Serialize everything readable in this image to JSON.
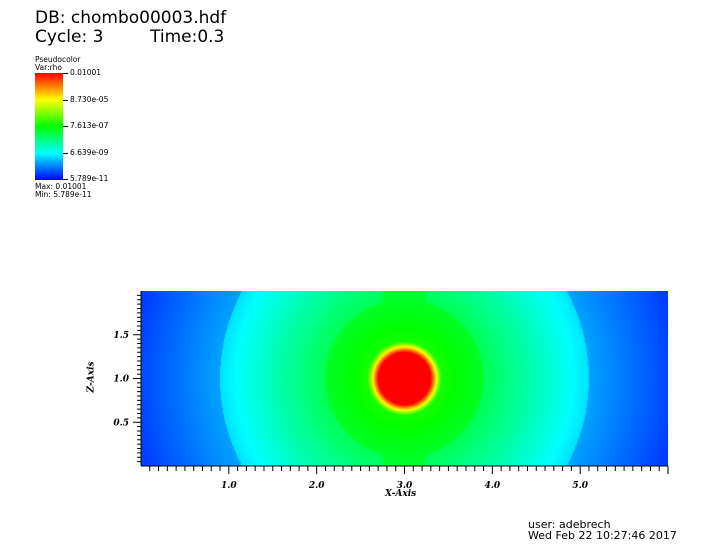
{
  "header": {
    "db": "DB: chombo00003.hdf",
    "cycle": "Cycle: 3",
    "time": "Time:0.3"
  },
  "legend": {
    "plot_type": "Pseudocolor",
    "var": "Var:rho",
    "ticks": [
      "0.01001",
      "8.730e-05",
      "7.613e-07",
      "6.639e-09",
      "5.789e-11"
    ],
    "max": "Max: 0.01001",
    "min": "Min: 5.789e-11",
    "colormap": [
      "#0000ff",
      "#00ffff",
      "#00ff00",
      "#ffff00",
      "#ff0000"
    ],
    "scale": "log"
  },
  "footer": {
    "user": "user: adebrech",
    "date": "Wed Feb 22 10:27:46 2017"
  },
  "chart_data": {
    "type": "heatmap",
    "xlabel": "X-Axis",
    "ylabel": "Z-Axis",
    "xlim": [
      0,
      6
    ],
    "ylim": [
      0,
      2
    ],
    "xticks": [
      "1.0",
      "2.0",
      "3.0",
      "4.0",
      "5.0"
    ],
    "yticks": [
      "0.5",
      "1.0",
      "1.5"
    ],
    "variable": "rho",
    "value_range": [
      5.789e-11,
      0.01001
    ],
    "peak_center": [
      3.0,
      1.0
    ]
  }
}
